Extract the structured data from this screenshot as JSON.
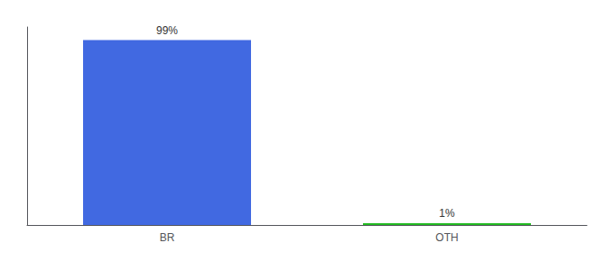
{
  "chart_data": {
    "type": "bar",
    "categories": [
      "BR",
      "OTH"
    ],
    "values": [
      99,
      1
    ],
    "value_labels": [
      "99%",
      "1%"
    ],
    "colors": [
      "#4169e1",
      "#22bb22"
    ],
    "ylim": [
      0,
      106
    ],
    "grid": false,
    "data_labels": true,
    "tick_labels": "x"
  }
}
